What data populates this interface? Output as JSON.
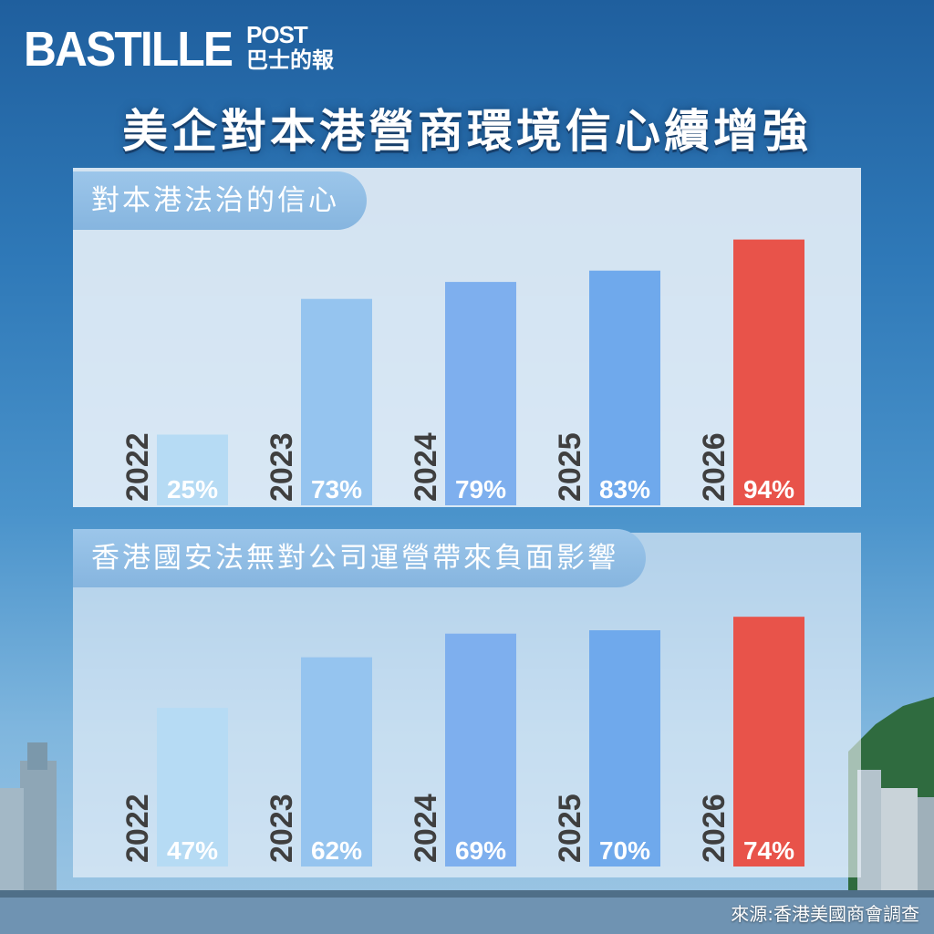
{
  "brand": {
    "logo_main": "BASTILLE",
    "logo_post": "POST",
    "logo_cn": "巴士的報"
  },
  "title": "美企對本港營商環境信心續增強",
  "source": "來源:香港美國商會調查",
  "colors": {
    "bar_2022": "#b6dbf4",
    "bar_2023": "#95c4ef",
    "bar_2024": "#7eafee",
    "bar_2025": "#6fa9ec",
    "bar_highlight": "#e8534a",
    "year_text": "#3f3f3f",
    "value_text": "#ffffff"
  },
  "chart_data": [
    {
      "type": "bar",
      "title": "對本港法治的信心",
      "categories": [
        "2022",
        "2023",
        "2024",
        "2025",
        "2026"
      ],
      "values": [
        25,
        73,
        79,
        83,
        94
      ],
      "value_labels": [
        "25%",
        "73%",
        "79%",
        "83%",
        "94%"
      ],
      "ylim": [
        0,
        100
      ],
      "grid": false,
      "highlight_category": "2026"
    },
    {
      "type": "bar",
      "title": "香港國安法無對公司運營帶來負面影響",
      "categories": [
        "2022",
        "2023",
        "2024",
        "2025",
        "2026"
      ],
      "values": [
        47,
        62,
        69,
        70,
        74
      ],
      "value_labels": [
        "47%",
        "62%",
        "69%",
        "70%",
        "74%"
      ],
      "ylim": [
        0,
        80
      ],
      "grid": false,
      "highlight_category": "2026"
    }
  ]
}
